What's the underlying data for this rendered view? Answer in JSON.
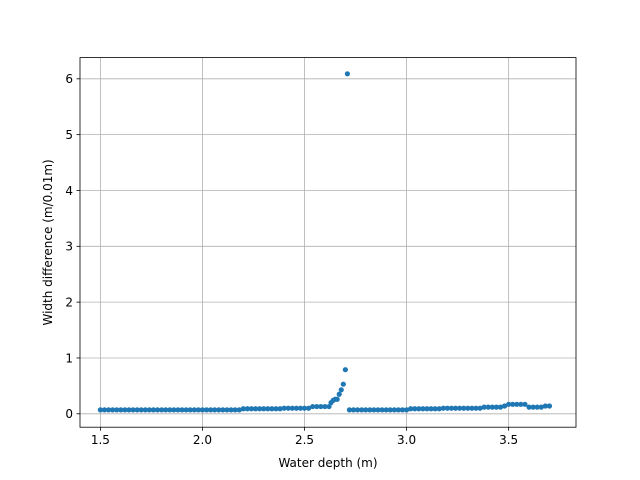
{
  "chart_data": {
    "type": "scatter",
    "title": "",
    "xlabel": "Water depth (m)",
    "ylabel": "Width difference (m/0.01m)",
    "xlim": [
      1.4,
      3.83
    ],
    "ylim": [
      -0.24,
      6.38
    ],
    "xticks": [
      1.5,
      2.0,
      2.5,
      3.0,
      3.5
    ],
    "xtick_labels": [
      "1.5",
      "2.0",
      "2.5",
      "3.0",
      "3.5"
    ],
    "yticks": [
      0,
      1,
      2,
      3,
      4,
      5,
      6
    ],
    "ytick_labels": [
      "0",
      "1",
      "2",
      "3",
      "4",
      "5",
      "6"
    ],
    "grid": true,
    "marker_color": "#1f77b4",
    "series": [
      {
        "x": [
          1.5,
          1.52,
          1.54,
          1.56,
          1.58,
          1.6,
          1.62,
          1.64,
          1.66,
          1.68,
          1.7,
          1.72,
          1.74,
          1.76,
          1.78,
          1.8,
          1.82,
          1.84,
          1.86,
          1.88,
          1.9,
          1.92,
          1.94,
          1.96,
          1.98,
          2.0,
          2.02,
          2.04,
          2.06,
          2.08,
          2.1,
          2.12,
          2.14,
          2.16,
          2.18,
          2.2,
          2.22,
          2.24,
          2.26,
          2.28,
          2.3,
          2.32,
          2.34,
          2.36,
          2.38,
          2.4,
          2.42,
          2.44,
          2.46,
          2.48,
          2.5,
          2.52,
          2.54,
          2.56,
          2.58,
          2.6,
          2.62,
          2.63,
          2.64,
          2.65,
          2.66,
          2.67,
          2.68,
          2.69,
          2.7,
          2.71,
          2.72,
          2.74,
          2.76,
          2.78,
          2.8,
          2.82,
          2.84,
          2.86,
          2.88,
          2.9,
          2.92,
          2.94,
          2.96,
          2.98,
          3.0,
          3.02,
          3.04,
          3.06,
          3.08,
          3.1,
          3.12,
          3.14,
          3.16,
          3.18,
          3.2,
          3.22,
          3.24,
          3.26,
          3.28,
          3.3,
          3.32,
          3.34,
          3.36,
          3.38,
          3.4,
          3.42,
          3.44,
          3.46,
          3.48,
          3.5,
          3.52,
          3.54,
          3.56,
          3.58,
          3.6,
          3.62,
          3.64,
          3.66,
          3.68,
          3.7
        ],
        "y": [
          0.07,
          0.07,
          0.07,
          0.07,
          0.07,
          0.07,
          0.07,
          0.07,
          0.07,
          0.07,
          0.07,
          0.07,
          0.07,
          0.07,
          0.07,
          0.07,
          0.07,
          0.07,
          0.07,
          0.07,
          0.07,
          0.07,
          0.07,
          0.07,
          0.07,
          0.07,
          0.07,
          0.07,
          0.07,
          0.07,
          0.07,
          0.07,
          0.07,
          0.07,
          0.07,
          0.09,
          0.09,
          0.09,
          0.09,
          0.09,
          0.09,
          0.09,
          0.09,
          0.09,
          0.09,
          0.1,
          0.1,
          0.1,
          0.1,
          0.1,
          0.1,
          0.1,
          0.13,
          0.13,
          0.13,
          0.13,
          0.13,
          0.2,
          0.24,
          0.26,
          0.26,
          0.35,
          0.43,
          0.53,
          0.79,
          6.09,
          0.07,
          0.07,
          0.07,
          0.07,
          0.07,
          0.07,
          0.07,
          0.07,
          0.07,
          0.07,
          0.07,
          0.07,
          0.07,
          0.07,
          0.07,
          0.09,
          0.09,
          0.09,
          0.09,
          0.09,
          0.09,
          0.09,
          0.09,
          0.1,
          0.1,
          0.1,
          0.1,
          0.1,
          0.1,
          0.1,
          0.1,
          0.1,
          0.1,
          0.12,
          0.12,
          0.12,
          0.12,
          0.12,
          0.14,
          0.17,
          0.17,
          0.17,
          0.17,
          0.17,
          0.12,
          0.12,
          0.12,
          0.12,
          0.14,
          0.14
        ]
      }
    ]
  }
}
